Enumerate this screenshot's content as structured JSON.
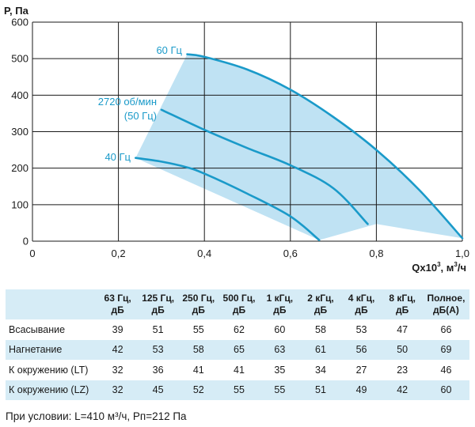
{
  "chart_data": {
    "type": "line",
    "ylabel": "P, Па",
    "xlabel_base": "Qx10",
    "xlabel_sup": "3",
    "xlabel_unit_pre": ", м",
    "xlabel_unit_sup": "3",
    "xlabel_unit_post": "/ч",
    "xlim": [
      0,
      1.0
    ],
    "ylim": [
      0,
      600
    ],
    "x_ticks": [
      0,
      0.2,
      0.4,
      0.6,
      0.8,
      1.0
    ],
    "x_tick_labels": [
      "0",
      "0,2",
      "0,4",
      "0,6",
      "0,8",
      "1,0"
    ],
    "y_ticks": [
      0,
      100,
      200,
      300,
      400,
      500,
      600
    ],
    "y_tick_labels": [
      "0",
      "100",
      "200",
      "300",
      "400",
      "500",
      "600"
    ],
    "grid": true,
    "series": [
      {
        "name": "60 Гц",
        "x": [
          0.36,
          0.4,
          0.5,
          0.6,
          0.7,
          0.8,
          0.9,
          1.0
        ],
        "y": [
          512,
          505,
          470,
          415,
          340,
          250,
          140,
          8
        ]
      },
      {
        "name": "2720 об/мин",
        "name_line2": "(50 Гц)",
        "x": [
          0.3,
          0.4,
          0.5,
          0.6,
          0.7,
          0.78
        ],
        "y": [
          360,
          305,
          255,
          208,
          145,
          47
        ]
      },
      {
        "name": "40 Гц",
        "x": [
          0.24,
          0.3,
          0.36,
          0.4,
          0.5,
          0.6,
          0.667
        ],
        "y": [
          228,
          218,
          202,
          185,
          130,
          68,
          3
        ]
      }
    ],
    "shaded_region": {
      "x": [
        0.24,
        0.36,
        0.4,
        0.5,
        0.6,
        0.7,
        0.8,
        0.9,
        1.0,
        0.8,
        0.667
      ],
      "y": [
        228,
        512,
        505,
        470,
        415,
        340,
        250,
        140,
        8,
        47,
        3
      ]
    },
    "colors": {
      "line": "#1a9ac9",
      "fill": "#bfe2f3",
      "grid": "#1a1a1a"
    }
  },
  "table": {
    "headers": [
      [
        "",
        ""
      ],
      [
        "63 Гц,",
        "дБ"
      ],
      [
        "125 Гц,",
        "дБ"
      ],
      [
        "250 Гц,",
        "дБ"
      ],
      [
        "500 Гц,",
        "дБ"
      ],
      [
        "1 кГц,",
        "дБ"
      ],
      [
        "2 кГц,",
        "дБ"
      ],
      [
        "4 кГц,",
        "дБ"
      ],
      [
        "8 кГц,",
        "дБ"
      ],
      [
        "Полное,",
        "дБ(А)"
      ]
    ],
    "rows": [
      {
        "name": "Всасывание",
        "values": [
          "39",
          "51",
          "55",
          "62",
          "60",
          "58",
          "53",
          "47",
          "66"
        ]
      },
      {
        "name": "Нагнетание",
        "values": [
          "42",
          "53",
          "58",
          "65",
          "63",
          "61",
          "56",
          "50",
          "69"
        ]
      },
      {
        "name": "К окружению (LT)",
        "values": [
          "32",
          "36",
          "41",
          "41",
          "35",
          "34",
          "27",
          "23",
          "46"
        ]
      },
      {
        "name": "К окружению (LZ)",
        "values": [
          "32",
          "45",
          "52",
          "55",
          "55",
          "51",
          "49",
          "42",
          "60"
        ]
      }
    ]
  },
  "note": "При условии: L=410 м³/ч, Pп=212 Па"
}
